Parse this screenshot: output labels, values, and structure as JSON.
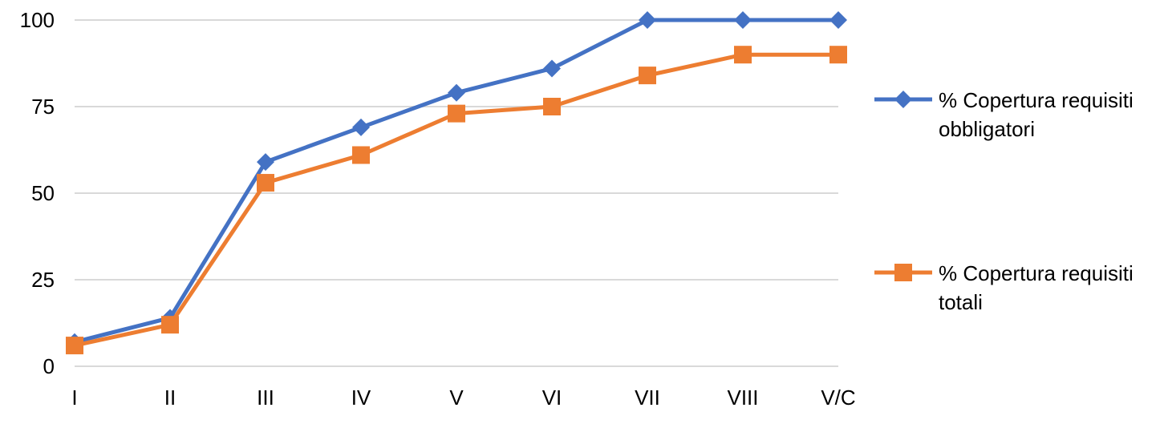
{
  "chart_data": {
    "type": "line",
    "title": "",
    "xlabel": "",
    "ylabel": "",
    "categories": [
      "I",
      "II",
      "III",
      "IV",
      "V",
      "VI",
      "VII",
      "VIII",
      "V/C"
    ],
    "ylim": [
      0,
      100
    ],
    "yticks": [
      0,
      25,
      50,
      75,
      100
    ],
    "grid": true,
    "legend_position": "right",
    "series": [
      {
        "name": "% Copertura requisiti obbligatori",
        "legend_lines": [
          "% Copertura requisiti",
          "obbligatori"
        ],
        "marker": "diamond",
        "color": "#4472C4",
        "values": [
          7,
          14,
          59,
          69,
          79,
          86,
          100,
          100,
          100
        ]
      },
      {
        "name": "% Copertura requisiti totali",
        "legend_lines": [
          "% Copertura requisiti",
          "totali"
        ],
        "marker": "square",
        "color": "#ED7D31",
        "values": [
          6,
          12,
          53,
          61,
          73,
          75,
          84,
          90,
          90
        ]
      }
    ]
  }
}
